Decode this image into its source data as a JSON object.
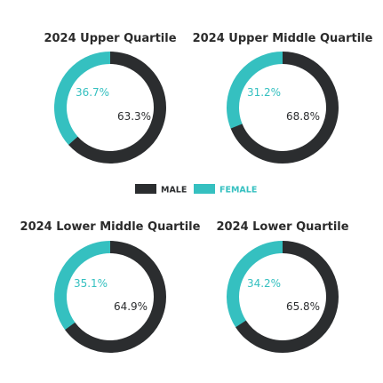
{
  "legend": [
    {
      "label": "MALE",
      "color": "#2b2d2f"
    },
    {
      "label": "FEMALE",
      "color": "#35c0c0"
    }
  ],
  "chart_data": [
    {
      "type": "pie",
      "title": "2024 Upper Quartile",
      "categories": [
        "Male",
        "Female"
      ],
      "values": [
        63.3,
        36.7
      ],
      "labels": [
        "63.3%",
        "36.7%"
      ],
      "colors": [
        "#2b2d2f",
        "#35c0c0"
      ],
      "legend": "center"
    },
    {
      "type": "pie",
      "title": "2024 Upper Middle Quartile",
      "categories": [
        "Male",
        "Female"
      ],
      "values": [
        68.8,
        31.2
      ],
      "labels": [
        "68.8%",
        "31.2%"
      ],
      "colors": [
        "#2b2d2f",
        "#35c0c0"
      ],
      "legend": "center"
    },
    {
      "type": "pie",
      "title": "2024 Lower Middle Quartile",
      "categories": [
        "Male",
        "Female"
      ],
      "values": [
        64.9,
        35.1
      ],
      "labels": [
        "64.9%",
        "35.1%"
      ],
      "colors": [
        "#2b2d2f",
        "#35c0c0"
      ],
      "legend": "center"
    },
    {
      "type": "pie",
      "title": "2024 Lower Quartile",
      "categories": [
        "Male",
        "Female"
      ],
      "values": [
        65.8,
        34.2
      ],
      "labels": [
        "65.8%",
        "34.2%"
      ],
      "colors": [
        "#2b2d2f",
        "#35c0c0"
      ],
      "legend": "center"
    }
  ]
}
